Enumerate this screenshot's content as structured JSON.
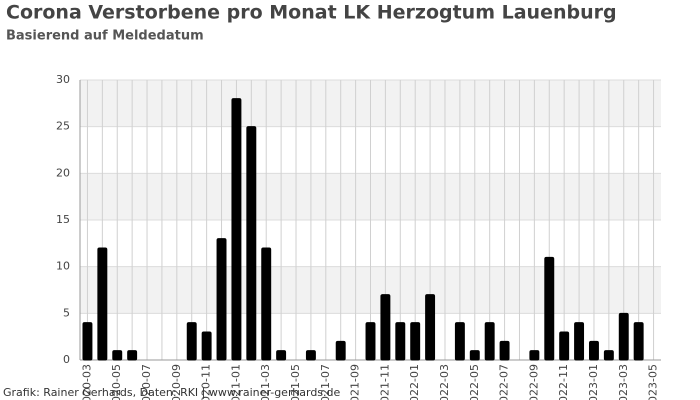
{
  "chart_data": {
    "type": "bar",
    "title": "Corona Verstorbene pro Monat LK Herzogtum Lauenburg",
    "subtitle": "Basierend auf Meldedatum",
    "source": "Grafik: Rainer Gerhards, Daten: RKI | www.rainer-gerhards.de",
    "categories": [
      "2020-03",
      null,
      "2020-05",
      null,
      "2020-07",
      null,
      "2020-09",
      null,
      "2020-11",
      null,
      "2021-01",
      null,
      "2021-03",
      null,
      "2021-05",
      null,
      "2021-07",
      null,
      "2021-09",
      null,
      "2021-11",
      null,
      "2022-01",
      null,
      "2022-03",
      null,
      "2022-05",
      null,
      "2022-07",
      null,
      "2022-09",
      null,
      "2022-11",
      null,
      "2023-01",
      null,
      "2023-03",
      null,
      "2023-05"
    ],
    "values": [
      4,
      12,
      1,
      1,
      0,
      0,
      0,
      4,
      3,
      13,
      28,
      25,
      12,
      1,
      0,
      1,
      0,
      2,
      0,
      4,
      7,
      4,
      4,
      7,
      0,
      4,
      1,
      4,
      2,
      0,
      1,
      11,
      3,
      4,
      2,
      1,
      5,
      4,
      0
    ],
    "color": "#000000",
    "ylim": [
      0,
      30
    ],
    "yticks": [
      0,
      5,
      10,
      15,
      20,
      25,
      30
    ],
    "grid": true
  }
}
